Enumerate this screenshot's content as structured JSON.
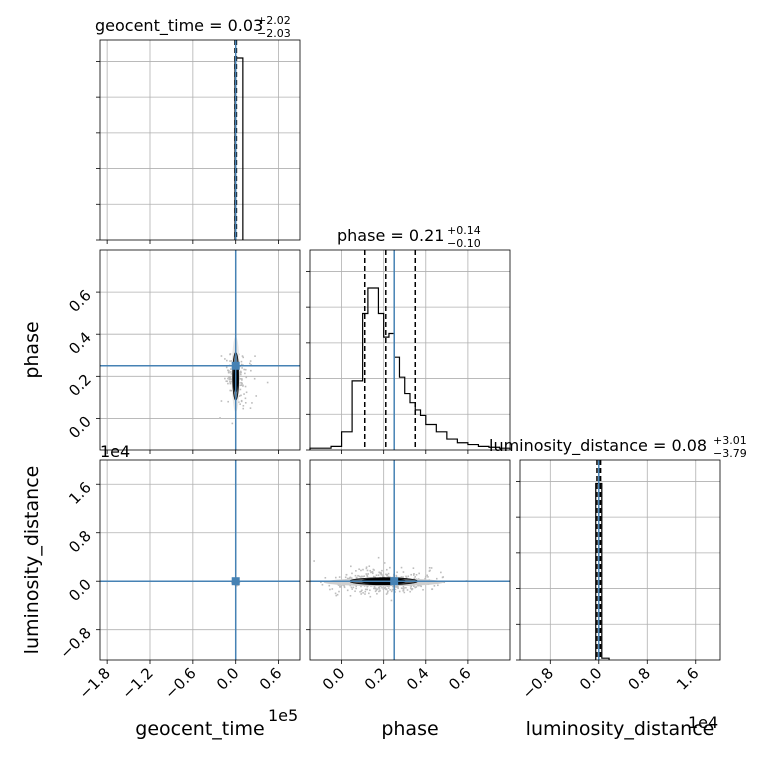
{
  "chart_data": {
    "type": "corner",
    "truth_color": "#4682b4",
    "parameters": [
      {
        "name": "geocent_time",
        "title_main": "geocent_time = 0.03",
        "title_plus": "+2.02",
        "title_minus": "−2.03",
        "xlabel": "geocent_time",
        "offset_label": "1e5",
        "range": [
          -1.9,
          0.9
        ],
        "ticks": [
          -1.8,
          -1.2,
          -0.6,
          0.0,
          0.6
        ],
        "tick_labels": [
          "−1.8",
          "−1.2",
          "−0.6",
          "0.0",
          "0.6"
        ],
        "truth": 0.0,
        "quantiles": [
          -0.01,
          0.0,
          0.01
        ],
        "hist": {
          "bins": [
            -0.01,
            0.1
          ],
          "counts": [
            1.0
          ],
          "ymax": 1.0
        }
      },
      {
        "name": "phase",
        "title_main": "phase = 0.21",
        "title_plus": "+0.14",
        "title_minus": "−0.10",
        "xlabel": "phase",
        "ylabel": "phase",
        "offset_label": "",
        "range": [
          -0.15,
          0.8
        ],
        "ticks": [
          0.0,
          0.2,
          0.4,
          0.6
        ],
        "tick_labels": [
          "0.0",
          "0.2",
          "0.4",
          "0.6"
        ],
        "truth": 0.25,
        "quantiles": [
          0.11,
          0.21,
          0.35
        ],
        "hist": {
          "bins": [
            -0.15,
            -0.1,
            -0.05,
            0.0,
            0.05,
            0.1,
            0.125,
            0.15,
            0.175,
            0.2,
            0.225,
            0.25,
            0.275,
            0.3,
            0.325,
            0.35,
            0.375,
            0.4,
            0.45,
            0.5,
            0.55,
            0.6,
            0.65,
            0.7,
            0.75,
            0.8
          ],
          "counts": [
            0.01,
            0.01,
            0.02,
            0.1,
            0.38,
            0.75,
            0.89,
            0.89,
            0.75,
            0.62,
            0.64,
            0.51,
            0.4,
            0.31,
            0.26,
            0.22,
            0.19,
            0.14,
            0.1,
            0.06,
            0.04,
            0.03,
            0.02,
            0.015,
            0.01
          ],
          "ymax": 1.0
        }
      },
      {
        "name": "luminosity_distance",
        "title_main": "luminosity_distance = 0.08",
        "title_plus": "+3.01",
        "title_minus": "−3.79",
        "xlabel": "luminosity_distance",
        "ylabel": "luminosity_distance",
        "offset_label": "1e4",
        "range": [
          -1.3,
          2.0
        ],
        "ticks": [
          -0.8,
          0.0,
          0.8,
          1.6
        ],
        "tick_labels": [
          "−0.8",
          "0.0",
          "0.8",
          "1.6"
        ],
        "truth": 0.0,
        "quantiles": [
          -0.03,
          0.01,
          0.03
        ],
        "hist": {
          "bins": [
            -0.05,
            0.0,
            0.05,
            0.17
          ],
          "counts": [
            0.97,
            0.97,
            0.01
          ],
          "ymax": 1.0
        }
      }
    ]
  }
}
